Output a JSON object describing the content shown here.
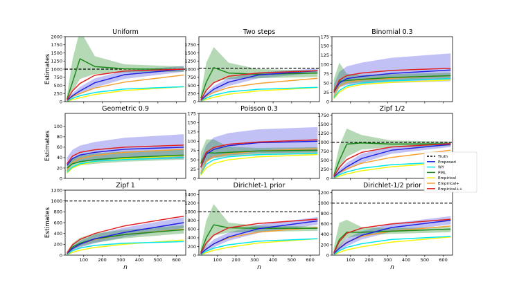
{
  "figure": {
    "ylabel": "Estimates",
    "xlabel": "n",
    "x_ticks": [
      100,
      200,
      300,
      400,
      500,
      600
    ],
    "legend": [
      "Truth",
      "Proposed",
      "WY",
      "PML",
      "Empirical",
      "Empirical+",
      "Empirical++"
    ],
    "colors": {
      "Truth": "#000000",
      "Proposed": "#2020e0",
      "WY": "#00e5ee",
      "PML": "#1a8a1a",
      "Empirical": "#f5f50a",
      "Empirical+": "#f5a030",
      "Empirical++": "#e02020"
    }
  },
  "chart_data": [
    {
      "type": "line",
      "title": "Uniform",
      "truth": 1000,
      "ylim": [
        0,
        2000
      ],
      "yticks": [
        "0",
        "250",
        "500",
        "750",
        "1000",
        "1250",
        "1500",
        "1750",
        "2000"
      ],
      "show_x": false,
      "x": [
        10,
        40,
        80,
        160,
        320,
        640
      ],
      "series": [
        {
          "name": "Proposed",
          "values": [
            40,
            180,
            330,
            580,
            830,
            1000
          ],
          "band": [
            [
              20,
              120,
              230,
              430,
              700,
              920
            ],
            [
              80,
              260,
              450,
              720,
              950,
              1100
            ]
          ]
        },
        {
          "name": "WY",
          "values": [
            10,
            100,
            180,
            280,
            390,
            460
          ]
        },
        {
          "name": "PML",
          "values": [
            80,
            600,
            1320,
            1080,
            1010,
            990
          ],
          "band": [
            [
              30,
              300,
              700,
              850,
              900,
              920
            ],
            [
              200,
              1300,
              2200,
              1400,
              1150,
              1080
            ]
          ]
        },
        {
          "name": "Empirical",
          "values": [
            8,
            60,
            120,
            220,
            340,
            460
          ]
        },
        {
          "name": "Empirical+",
          "values": [
            25,
            160,
            250,
            420,
            600,
            820
          ]
        },
        {
          "name": "Empirical++",
          "values": [
            50,
            330,
            560,
            810,
            940,
            1000
          ]
        }
      ]
    },
    {
      "type": "line",
      "title": "Two steps",
      "truth": 1030,
      "ylim": [
        0,
        2000
      ],
      "yticks": [
        "0",
        "250",
        "500",
        "750",
        "1000",
        "1250",
        "1500",
        "1750"
      ],
      "show_x": false,
      "x": [
        10,
        40,
        80,
        160,
        320,
        640
      ],
      "series": [
        {
          "name": "Proposed",
          "values": [
            40,
            200,
            380,
            600,
            820,
            950
          ],
          "band": [
            [
              20,
              130,
              280,
              480,
              720,
              880
            ],
            [
              80,
              280,
              480,
              730,
              900,
              1020
            ]
          ]
        },
        {
          "name": "WY",
          "values": [
            10,
            110,
            200,
            300,
            380,
            440
          ]
        },
        {
          "name": "PML",
          "values": [
            100,
            600,
            1050,
            880,
            840,
            880
          ],
          "band": [
            [
              30,
              300,
              600,
              700,
              720,
              760
            ],
            [
              250,
              1200,
              1680,
              1200,
              1000,
              960
            ]
          ]
        },
        {
          "name": "Empirical",
          "values": [
            8,
            70,
            130,
            230,
            330,
            430
          ]
        },
        {
          "name": "Empirical+",
          "values": [
            25,
            170,
            280,
            430,
            560,
            720
          ]
        },
        {
          "name": "Empirical++",
          "values": [
            50,
            350,
            580,
            780,
            880,
            950
          ]
        }
      ]
    },
    {
      "type": "line",
      "title": "Binomial 0.3",
      "truth": null,
      "ylim": [
        0,
        175
      ],
      "yticks": [
        "0",
        "25",
        "50",
        "75",
        "100",
        "125",
        "150",
        "175"
      ],
      "show_x": false,
      "x": [
        10,
        40,
        80,
        160,
        320,
        640
      ],
      "series": [
        {
          "name": "Proposed",
          "values": [
            25,
            50,
            62,
            68,
            76,
            85
          ],
          "band": [
            [
              15,
              38,
              45,
              48,
              50,
              55
            ],
            [
              45,
              80,
              95,
              105,
              118,
              130
            ]
          ]
        },
        {
          "name": "WY",
          "values": [
            10,
            30,
            42,
            50,
            56,
            62
          ]
        },
        {
          "name": "PML",
          "values": [
            30,
            55,
            57,
            60,
            65,
            70
          ],
          "band": [
            [
              20,
              40,
              48,
              52,
              56,
              60
            ],
            [
              60,
              105,
              75,
              72,
              74,
              78
            ]
          ]
        },
        {
          "name": "Empirical",
          "values": [
            8,
            25,
            38,
            46,
            52,
            58
          ]
        },
        {
          "name": "Empirical+",
          "values": [
            14,
            40,
            52,
            58,
            63,
            70
          ]
        },
        {
          "name": "Empirical++",
          "values": [
            25,
            58,
            70,
            77,
            84,
            90
          ]
        }
      ]
    },
    {
      "type": "line",
      "title": "Geometric 0.9",
      "truth": null,
      "ylim": [
        0,
        125
      ],
      "yticks": [
        "0",
        "20",
        "40",
        "60",
        "80",
        "100"
      ],
      "show_x": false,
      "x": [
        10,
        40,
        80,
        160,
        320,
        640
      ],
      "series": [
        {
          "name": "Proposed",
          "values": [
            25,
            38,
            45,
            50,
            56,
            60
          ],
          "band": [
            [
              15,
              28,
              32,
              34,
              36,
              38
            ],
            [
              40,
              55,
              63,
              70,
              78,
              85
            ]
          ]
        },
        {
          "name": "WY",
          "values": [
            12,
            22,
            28,
            33,
            36,
            40
          ]
        },
        {
          "name": "PML",
          "values": [
            20,
            28,
            32,
            36,
            40,
            45
          ],
          "band": [
            [
              12,
              20,
              25,
              28,
              32,
              36
            ],
            [
              30,
              40,
              44,
              48,
              52,
              56
            ]
          ]
        },
        {
          "name": "Empirical",
          "values": [
            10,
            20,
            26,
            32,
            38,
            44
          ]
        },
        {
          "name": "Empirical+",
          "values": [
            15,
            30,
            38,
            44,
            50,
            56
          ]
        },
        {
          "name": "Empirical++",
          "values": [
            28,
            43,
            50,
            55,
            60,
            64
          ]
        }
      ]
    },
    {
      "type": "line",
      "title": "Poisson 0.3",
      "truth": null,
      "ylim": [
        0,
        175
      ],
      "yticks": [
        "0",
        "25",
        "50",
        "75",
        "100",
        "125",
        "150",
        "175"
      ],
      "show_x": false,
      "x": [
        10,
        40,
        80,
        160,
        320,
        640
      ],
      "series": [
        {
          "name": "Proposed",
          "values": [
            30,
            65,
            78,
            88,
            96,
            100
          ],
          "band": [
            [
              18,
              48,
              55,
              62,
              68,
              70
            ],
            [
              50,
              90,
              110,
              122,
              132,
              138
            ]
          ]
        },
        {
          "name": "WY",
          "values": [
            12,
            38,
            50,
            58,
            64,
            68
          ]
        },
        {
          "name": "PML",
          "values": [
            40,
            70,
            68,
            70,
            74,
            76
          ],
          "band": [
            [
              25,
              45,
              55,
              58,
              62,
              65
            ],
            [
              70,
              105,
              105,
              85,
              82,
              84
            ]
          ]
        },
        {
          "name": "Empirical",
          "values": [
            8,
            28,
            40,
            50,
            58,
            64
          ]
        },
        {
          "name": "Empirical+",
          "values": [
            15,
            45,
            58,
            66,
            74,
            80
          ]
        },
        {
          "name": "Empirical++",
          "values": [
            30,
            70,
            83,
            92,
            98,
            104
          ]
        }
      ]
    },
    {
      "type": "line",
      "title": "Zipf 1/2",
      "truth": 1000,
      "ylim": [
        0,
        1800
      ],
      "yticks": [
        "0",
        "250",
        "500",
        "750",
        "1000",
        "1250",
        "1500",
        "1750"
      ],
      "show_x": false,
      "x": [
        10,
        40,
        80,
        160,
        320,
        640
      ],
      "series": [
        {
          "name": "Proposed",
          "values": [
            40,
            170,
            320,
            550,
            780,
            940
          ],
          "band": [
            [
              20,
              110,
              230,
              430,
              680,
              870
            ],
            [
              80,
              250,
              430,
              680,
              880,
              1000
            ]
          ]
        },
        {
          "name": "WY",
          "values": [
            10,
            100,
            180,
            280,
            380,
            460
          ]
        },
        {
          "name": "PML",
          "values": [
            80,
            500,
            950,
            980,
            950,
            960
          ],
          "band": [
            [
              30,
              250,
              600,
              800,
              860,
              900
            ],
            [
              200,
              900,
              1380,
              1200,
              1050,
              1020
            ]
          ]
        },
        {
          "name": "Empirical",
          "values": [
            8,
            60,
            120,
            210,
            320,
            440
          ]
        },
        {
          "name": "Empirical+",
          "values": [
            25,
            160,
            260,
            420,
            580,
            780
          ]
        },
        {
          "name": "Empirical++",
          "values": [
            50,
            300,
            520,
            720,
            870,
            960
          ]
        }
      ]
    },
    {
      "type": "line",
      "title": "Zipf 1",
      "truth": 1000,
      "ylim": [
        0,
        1200
      ],
      "yticks": [
        "0",
        "200",
        "400",
        "600",
        "800",
        "1000",
        "1200"
      ],
      "show_x": true,
      "x": [
        10,
        40,
        80,
        160,
        320,
        640
      ],
      "series": [
        {
          "name": "Proposed",
          "values": [
            30,
            120,
            200,
            300,
            420,
            600
          ],
          "band": [
            [
              15,
              80,
              140,
              220,
              330,
              500
            ],
            [
              60,
              170,
              260,
              380,
              510,
              700
            ]
          ]
        },
        {
          "name": "WY",
          "values": [
            10,
            80,
            130,
            180,
            220,
            250
          ]
        },
        {
          "name": "PML",
          "values": [
            30,
            150,
            220,
            300,
            380,
            470
          ],
          "band": [
            [
              15,
              100,
              160,
              230,
              310,
              400
            ],
            [
              70,
              220,
              320,
              400,
              470,
              550
            ]
          ]
        },
        {
          "name": "Empirical",
          "values": [
            8,
            50,
            90,
            140,
            200,
            280
          ]
        },
        {
          "name": "Empirical+",
          "values": [
            20,
            120,
            200,
            290,
            380,
            480
          ]
        },
        {
          "name": "Empirical++",
          "values": [
            40,
            190,
            290,
            400,
            540,
            720
          ]
        }
      ]
    },
    {
      "type": "line",
      "title": "Dirichlet-1 prior",
      "truth": 1000,
      "ylim": [
        0,
        1500
      ],
      "yticks": [
        "0",
        "200",
        "400",
        "600",
        "800",
        "1000",
        "1200",
        "1400"
      ],
      "show_x": true,
      "x": [
        10,
        40,
        80,
        160,
        320,
        640
      ],
      "series": [
        {
          "name": "Proposed",
          "values": [
            30,
            140,
            260,
            420,
            610,
            790
          ],
          "band": [
            [
              15,
              90,
              180,
              330,
              510,
              700
            ],
            [
              70,
              210,
              360,
              520,
              700,
              880
            ]
          ]
        },
        {
          "name": "WY",
          "values": [
            10,
            90,
            160,
            240,
            320,
            380
          ]
        },
        {
          "name": "PML",
          "values": [
            60,
            400,
            700,
            630,
            620,
            620
          ],
          "band": [
            [
              20,
              200,
              450,
              520,
              540,
              560
            ],
            [
              180,
              800,
              1180,
              750,
              680,
              660
            ]
          ]
        },
        {
          "name": "Empirical",
          "values": [
            8,
            55,
            110,
            180,
            280,
            380
          ]
        },
        {
          "name": "Empirical+",
          "values": [
            20,
            150,
            260,
            400,
            530,
            640
          ]
        },
        {
          "name": "Empirical++",
          "values": [
            40,
            280,
            460,
            630,
            730,
            830
          ]
        }
      ]
    },
    {
      "type": "line",
      "title": "Dirichlet-1/2 prior",
      "truth": 1000,
      "ylim": [
        0,
        1250
      ],
      "yticks": [
        "0",
        "200",
        "400",
        "600",
        "800",
        "1000",
        "1200"
      ],
      "show_x": true,
      "x": [
        10,
        40,
        80,
        160,
        320,
        640
      ],
      "series": [
        {
          "name": "Proposed",
          "values": [
            30,
            130,
            240,
            380,
            530,
            670
          ],
          "band": [
            [
              15,
              90,
              170,
              300,
              450,
              590
            ],
            [
              70,
              190,
              320,
              460,
              610,
              750
            ]
          ]
        },
        {
          "name": "WY",
          "values": [
            10,
            85,
            150,
            220,
            300,
            360
          ]
        },
        {
          "name": "PML",
          "values": [
            50,
            300,
            440,
            440,
            460,
            500
          ],
          "band": [
            [
              20,
              150,
              330,
              380,
              410,
              440
            ],
            [
              150,
              620,
              680,
              540,
              520,
              540
            ]
          ]
        },
        {
          "name": "Empirical",
          "values": [
            8,
            50,
            100,
            160,
            250,
            350
          ]
        },
        {
          "name": "Empirical+",
          "values": [
            20,
            140,
            250,
            360,
            460,
            560
          ]
        },
        {
          "name": "Empirical++",
          "values": [
            40,
            260,
            420,
            520,
            600,
            690
          ]
        }
      ]
    }
  ]
}
